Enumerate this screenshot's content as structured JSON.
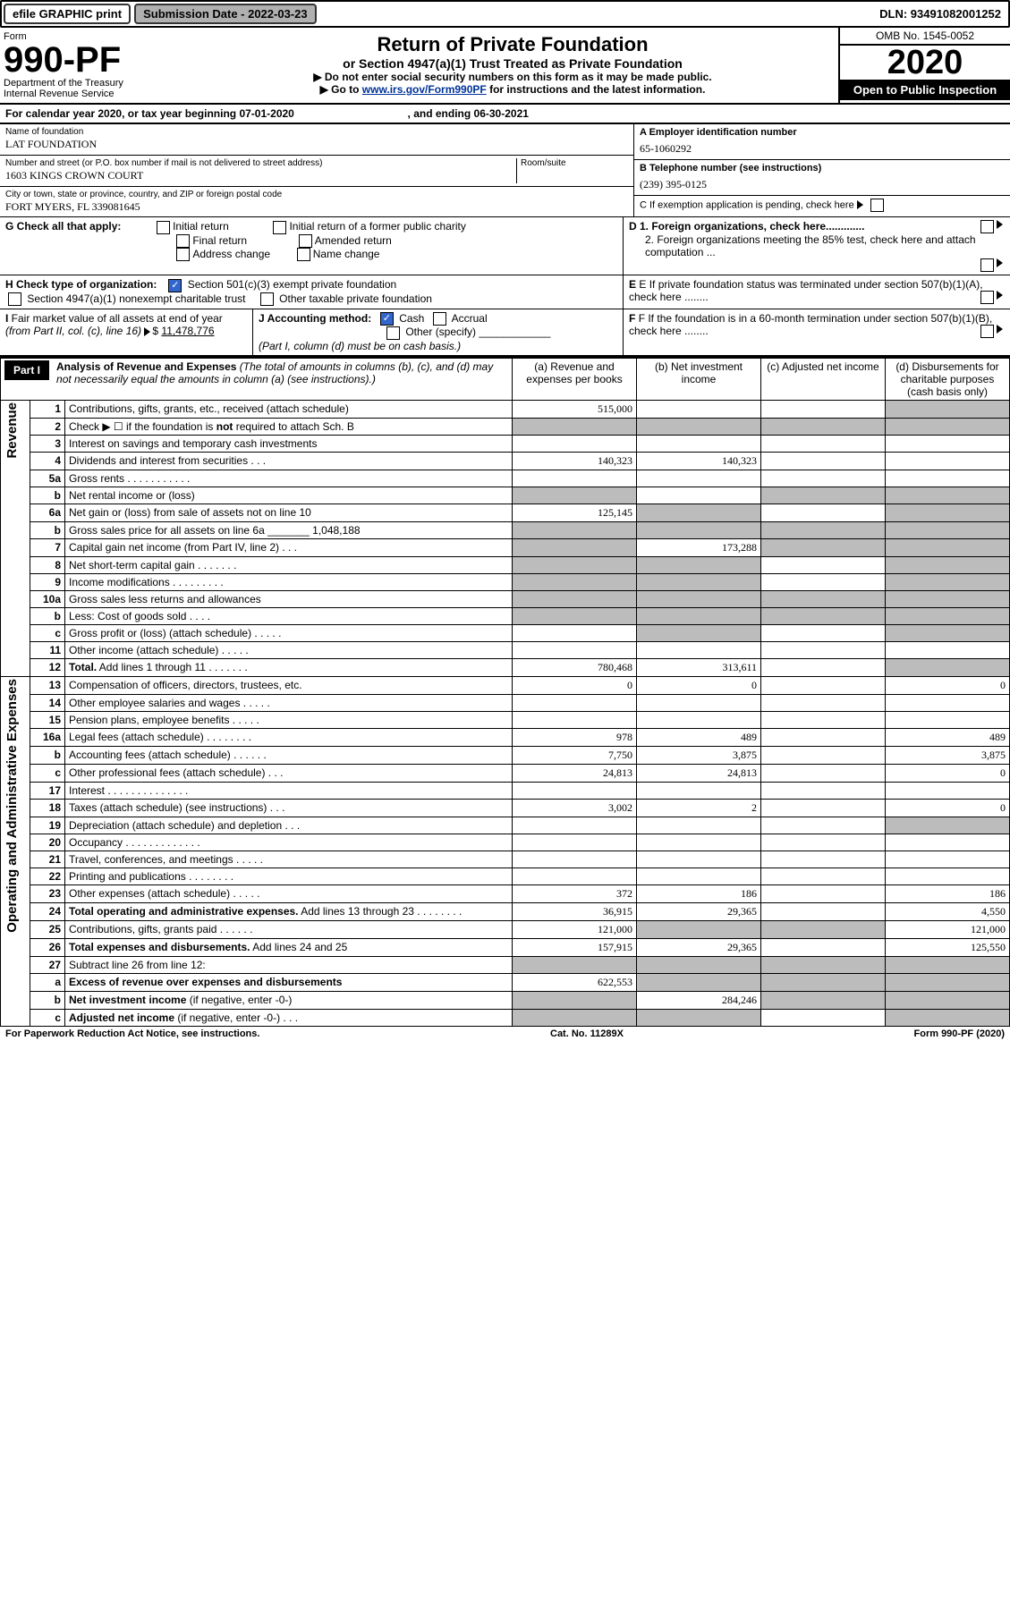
{
  "topbar": {
    "efile": "efile GRAPHIC print",
    "sub_label": "Submission Date - 2022-03-23",
    "dln": "DLN: 93491082001252"
  },
  "header": {
    "form": "Form",
    "num": "990-PF",
    "dept": "Department of the Treasury\nInternal Revenue Service",
    "title": "Return of Private Foundation",
    "subtitle": "or Section 4947(a)(1) Trust Treated as Private Foundation",
    "line1": "▶ Do not enter social security numbers on this form as it may be made public.",
    "line2_pre": "▶ Go to ",
    "link": "www.irs.gov/Form990PF",
    "line2_post": " for instructions and the latest information.",
    "omb": "OMB No. 1545-0052",
    "year": "2020",
    "open": "Open to Public Inspection"
  },
  "calyear": {
    "pre": "For calendar year 2020, or tax year beginning ",
    "begin": "07-01-2020",
    "mid": ", and ending ",
    "end": "06-30-2021"
  },
  "info": {
    "name_lbl": "Name of foundation",
    "name": "LAT FOUNDATION",
    "addr_lbl": "Number and street (or P.O. box number if mail is not delivered to street address)",
    "addr": "1603 KINGS CROWN COURT",
    "rm": "Room/suite",
    "city_lbl": "City or town, state or province, country, and ZIP or foreign postal code",
    "city": "FORT MYERS, FL  339081645",
    "a_lbl": "A Employer identification number",
    "a": "65-1060292",
    "b_lbl": "B Telephone number (see instructions)",
    "b": "(239) 395-0125",
    "c": "C  If exemption application is pending, check here",
    "d1": "D 1. Foreign organizations, check here.............",
    "d2": "2. Foreign organizations meeting the 85% test, check here and attach computation ...",
    "e": "E  If private foundation status was terminated under section 507(b)(1)(A), check here ........",
    "f": "F  If the foundation is in a 60-month termination under section 507(b)(1)(B), check here ........"
  },
  "g": {
    "lbl": "G Check all that apply:",
    "opts": [
      "Initial return",
      "Final return",
      "Address change",
      "Initial return of a former public charity",
      "Amended return",
      "Name change"
    ]
  },
  "h": {
    "lbl": "H Check type of organization:",
    "o1": "Section 501(c)(3) exempt private foundation",
    "o2": "Section 4947(a)(1) nonexempt charitable trust",
    "o3": "Other taxable private foundation"
  },
  "i": {
    "text": "I Fair market value of all assets at end of year (from Part II, col. (c), line 16) ▶$ ",
    "val": "11,478,776"
  },
  "j": {
    "lbl": "J Accounting method:",
    "o1": "Cash",
    "o2": "Accrual",
    "o3": "Other (specify)",
    "note": "(Part I, column (d) must be on cash basis.)"
  },
  "part1": {
    "label": "Part I",
    "title": "Analysis of Revenue and Expenses",
    "note": "(The total of amounts in columns (b), (c), and (d) may not necessarily equal the amounts in column (a) (see instructions).)",
    "cols": {
      "a": "(a) Revenue and expenses per books",
      "b": "(b) Net investment income",
      "c": "(c) Adjusted net income",
      "d": "(d) Disbursements for charitable purposes (cash basis only)"
    }
  },
  "sections": {
    "rev": "Revenue",
    "exp": "Operating and Administrative Expenses"
  },
  "rows": [
    {
      "n": "1",
      "d": "Contributions, gifts, grants, etc., received (attach schedule)",
      "a": "515,000",
      "d_shade": true
    },
    {
      "n": "2",
      "d": "Check ▶ ☐ if the foundation is <b>not</b> required to attach Sch. B",
      "row_shade": true
    },
    {
      "n": "3",
      "d": "Interest on savings and temporary cash investments"
    },
    {
      "n": "4",
      "d": "Dividends and interest from securities  .  .  .",
      "a": "140,323",
      "b": "140,323"
    },
    {
      "n": "5a",
      "d": "Gross rents  .  .  .  .  .  .  .  .  .  .  ."
    },
    {
      "n": "b",
      "d": "Net rental income or (loss)",
      "c_shade": true,
      "d_shade": true,
      "a_shade": true
    },
    {
      "n": "6a",
      "d": "Net gain or (loss) from sale of assets not on line 10",
      "a": "125,145",
      "b_shade": true,
      "d_shade": true
    },
    {
      "n": "b",
      "d": "Gross sales price for all assets on line 6a _______ 1,048,188",
      "a_shade": true,
      "b_shade": true,
      "c_shade": true,
      "d_shade": true
    },
    {
      "n": "7",
      "d": "Capital gain net income (from Part IV, line 2)  .  .  .",
      "a_shade": true,
      "b": "173,288",
      "c_shade": true,
      "d_shade": true
    },
    {
      "n": "8",
      "d": "Net short-term capital gain  .  .  .  .  .  .  .",
      "a_shade": true,
      "b_shade": true,
      "d_shade": true
    },
    {
      "n": "9",
      "d": "Income modifications  .  .  .  .  .  .  .  .  .",
      "a_shade": true,
      "b_shade": true,
      "d_shade": true
    },
    {
      "n": "10a",
      "d": "Gross sales less returns and allowances",
      "a_shade": true,
      "b_shade": true,
      "c_shade": true,
      "d_shade": true
    },
    {
      "n": "b",
      "d": "Less: Cost of goods sold  .  .  .  .",
      "a_shade": true,
      "b_shade": true,
      "c_shade": true,
      "d_shade": true
    },
    {
      "n": "c",
      "d": "Gross profit or (loss) (attach schedule)  .  .  .  .  .",
      "b_shade": true,
      "d_shade": true
    },
    {
      "n": "11",
      "d": "Other income (attach schedule)  .  .  .  .  ."
    },
    {
      "n": "12",
      "d": "<b>Total.</b> Add lines 1 through 11  .  .  .  .  .  .  .",
      "a": "780,468",
      "b": "313,611",
      "d_shade": true
    },
    {
      "n": "13",
      "d": "Compensation of officers, directors, trustees, etc.",
      "a": "0",
      "b": "0",
      "dv": "0"
    },
    {
      "n": "14",
      "d": "Other employee salaries and wages  .  .  .  .  ."
    },
    {
      "n": "15",
      "d": "Pension plans, employee benefits  .  .  .  .  ."
    },
    {
      "n": "16a",
      "d": "Legal fees (attach schedule)  .  .  .  .  .  .  .  .",
      "a": "978",
      "b": "489",
      "dv": "489"
    },
    {
      "n": "b",
      "d": "Accounting fees (attach schedule)  .  .  .  .  .  .",
      "a": "7,750",
      "b": "3,875",
      "dv": "3,875"
    },
    {
      "n": "c",
      "d": "Other professional fees (attach schedule)  .  .  .",
      "a": "24,813",
      "b": "24,813",
      "dv": "0"
    },
    {
      "n": "17",
      "d": "Interest  .  .  .  .  .  .  .  .  .  .  .  .  .  ."
    },
    {
      "n": "18",
      "d": "Taxes (attach schedule) (see instructions)  .  .  .",
      "a": "3,002",
      "b": "2",
      "dv": "0"
    },
    {
      "n": "19",
      "d": "Depreciation (attach schedule) and depletion  .  .  .",
      "d_shade": true
    },
    {
      "n": "20",
      "d": "Occupancy  .  .  .  .  .  .  .  .  .  .  .  .  ."
    },
    {
      "n": "21",
      "d": "Travel, conferences, and meetings  .  .  .  .  ."
    },
    {
      "n": "22",
      "d": "Printing and publications  .  .  .  .  .  .  .  ."
    },
    {
      "n": "23",
      "d": "Other expenses (attach schedule)  .  .  .  .  .",
      "a": "372",
      "b": "186",
      "dv": "186"
    },
    {
      "n": "24",
      "d": "<b>Total operating and administrative expenses.</b> Add lines 13 through 23  .  .  .  .  .  .  .  .",
      "a": "36,915",
      "b": "29,365",
      "dv": "4,550"
    },
    {
      "n": "25",
      "d": "Contributions, gifts, grants paid  .  .  .  .  .  .",
      "a": "121,000",
      "b_shade": true,
      "c_shade": true,
      "dv": "121,000"
    },
    {
      "n": "26",
      "d": "<b>Total expenses and disbursements.</b> Add lines 24 and 25",
      "a": "157,915",
      "b": "29,365",
      "dv": "125,550"
    },
    {
      "n": "27",
      "d": "Subtract line 26 from line 12:",
      "a_shade": true,
      "b_shade": true,
      "c_shade": true,
      "d_shade": true
    },
    {
      "n": "a",
      "d": "<b>Excess of revenue over expenses and disbursements</b>",
      "a": "622,553",
      "b_shade": true,
      "c_shade": true,
      "d_shade": true
    },
    {
      "n": "b",
      "d": "<b>Net investment income</b> (if negative, enter -0-)",
      "a_shade": true,
      "b": "284,246",
      "c_shade": true,
      "d_shade": true
    },
    {
      "n": "c",
      "d": "<b>Adjusted net income</b> (if negative, enter -0-)  .  .  .",
      "a_shade": true,
      "b_shade": true,
      "d_shade": true
    }
  ],
  "footer": {
    "l": "For Paperwork Reduction Act Notice, see instructions.",
    "m": "Cat. No. 11289X",
    "r": "Form 990-PF (2020)"
  }
}
